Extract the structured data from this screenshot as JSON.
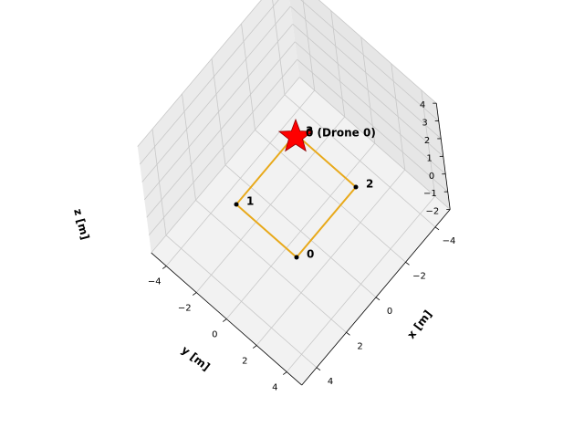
{
  "chart_data": {
    "type": "scatter",
    "projection": "3d",
    "title": "",
    "xlabel": "x [m]",
    "ylabel": "y [m]",
    "zlabel": "z [m]",
    "xlim": [
      -5,
      5
    ],
    "ylim": [
      -5,
      5
    ],
    "zlim": [
      -2,
      4
    ],
    "xticks": [
      "4",
      "2",
      "0",
      "−2",
      "−4"
    ],
    "yticks": [
      "−4",
      "−2",
      "0",
      "2",
      "4"
    ],
    "zticks": [
      "4",
      "3",
      "2",
      "1",
      "0",
      "−1",
      "−2"
    ],
    "grid": true,
    "colors": {
      "path": "#E8A91A",
      "waypoint": "#000000",
      "drone": "#FF0000",
      "drone_edge": "#8B0000",
      "pane": "#F2F2F2",
      "grid": "#C8C8C8"
    },
    "path": {
      "closed": true,
      "points": [
        {
          "x": 2,
          "y": 2,
          "z": 0
        },
        {
          "x": 2,
          "y": -2,
          "z": 0
        },
        {
          "x": -2,
          "y": -2,
          "z": 0
        },
        {
          "x": -2,
          "y": 2,
          "z": 0
        }
      ]
    },
    "waypoints": [
      {
        "label": "0",
        "x": 2,
        "y": 2,
        "z": 0
      },
      {
        "label": "1",
        "x": 2,
        "y": -2,
        "z": 0
      },
      {
        "label": "2",
        "x": -2,
        "y": 2,
        "z": 0
      },
      {
        "label": "3",
        "x": -2,
        "y": -2,
        "z": 0
      }
    ],
    "drones": [
      {
        "label": "0 (Drone 0)",
        "marker": "star",
        "x": -2,
        "y": -2,
        "z": 0
      }
    ]
  }
}
